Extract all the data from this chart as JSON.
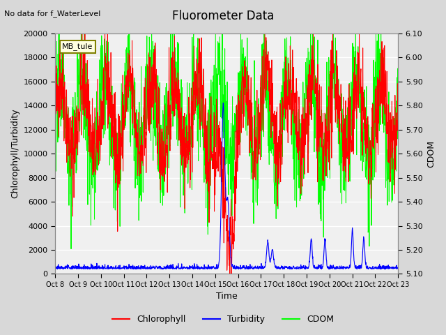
{
  "title": "Fluorometer Data",
  "top_left_text": "No data for f_WaterLevel",
  "station_label": "MB_tule",
  "xlabel": "Time",
  "ylabel_left": "Chlorophyll/Turbidity",
  "ylabel_right": "CDOM",
  "ylim_left": [
    0,
    20000
  ],
  "ylim_right": [
    5.1,
    6.1
  ],
  "yticks_left": [
    0,
    2000,
    4000,
    6000,
    8000,
    10000,
    12000,
    14000,
    16000,
    18000,
    20000
  ],
  "yticks_right": [
    5.1,
    5.2,
    5.3,
    5.4,
    5.5,
    5.6,
    5.7,
    5.8,
    5.9,
    6.0,
    6.1
  ],
  "xtick_labels": [
    "Oct 8",
    "Oct 9",
    "Oct 10",
    "Oct 11",
    "Oct 12",
    "Oct 13",
    "Oct 14",
    "Oct 15",
    "Oct 16",
    "Oct 17",
    "Oct 18",
    "Oct 19",
    "Oct 20",
    "Oct 21",
    "Oct 22",
    "Oct 23"
  ],
  "xtick_positions": [
    0,
    1,
    2,
    3,
    4,
    5,
    6,
    7,
    8,
    9,
    10,
    11,
    12,
    13,
    14,
    15
  ],
  "bg_color": "#d8d8d8",
  "plot_bg_color": "#f0f0f0",
  "chlorophyll_color": "#ff0000",
  "turbidity_color": "#0000ff",
  "cdom_color": "#00ff00",
  "grid_color": "#ffffff",
  "seed": 42,
  "n_days": 15,
  "n_per_day": 96
}
